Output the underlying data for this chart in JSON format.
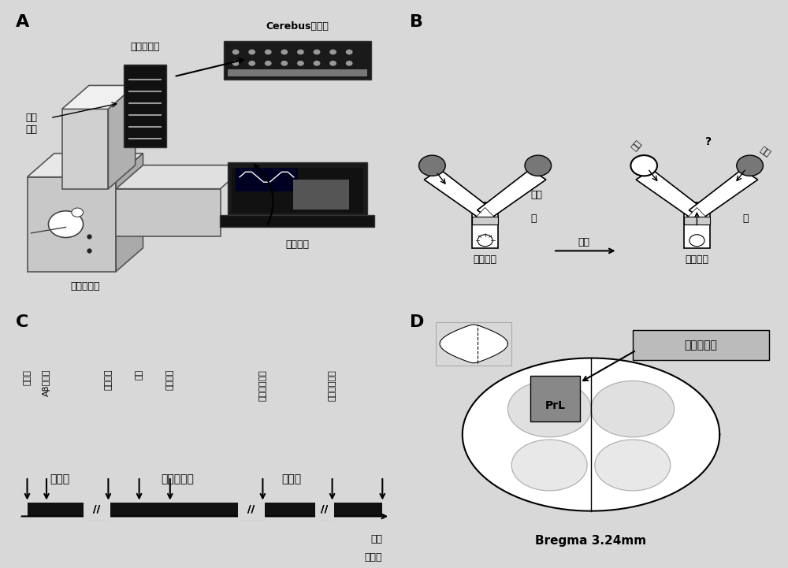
{
  "bg_color": "#d8d8d8",
  "panel_labels": [
    "A",
    "B",
    "C",
    "D"
  ],
  "panel_A": {
    "title_preamp": "前置放大器",
    "title_cerebus": "Cerebus记录仪",
    "title_neuro": "神经\n信息",
    "title_sensor": "红外探测器",
    "title_analysis": "数据分析"
  },
  "panel_B": {
    "label_infrared": "红外",
    "label_door": "门",
    "label_free": "自由选择",
    "label_delay": "延迟",
    "label_alternate": "交替选择",
    "label_error": "错误",
    "label_question": "?",
    "label_correct": "正确"
  },
  "panel_C": {
    "label_normal": "正常组",
    "label_ab": "Aβ注射组",
    "label_recovery1": "恢复期",
    "label_start_adapt": "开始适应",
    "label_control": "控食",
    "label_tube_adapt": "逑管适用",
    "label_behavior": "行为学训练",
    "label_surgery": "慢性植入手术",
    "label_recovery2": "恢复期",
    "label_start_record": "开始记录数据",
    "label_time": "时间",
    "label_days": "（天）"
  },
  "panel_D": {
    "label_prl": "PrL",
    "label_frontal": "前额叶皮层",
    "label_bregma": "Bregma 3.24mm"
  }
}
